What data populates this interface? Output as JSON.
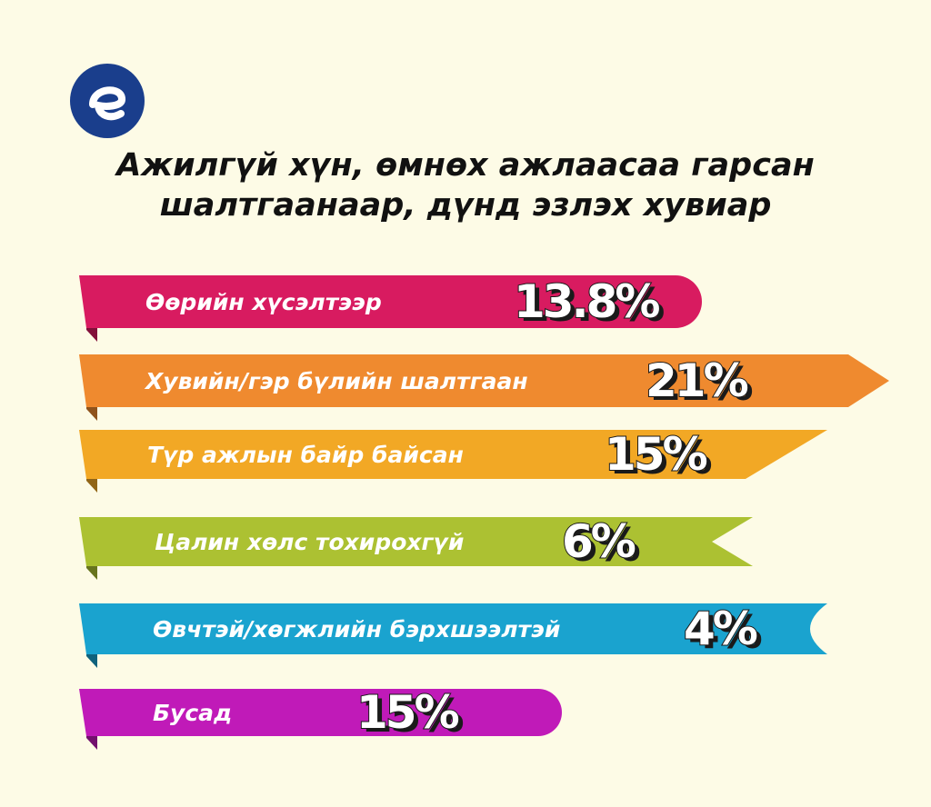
{
  "title_line1": "Ажилгүй хүн, өмнөх ажлаасаа гарсан",
  "title_line2": "шалтгаанаар, дүнд эзлэх хувиар",
  "logo_icon": "e-letter-logo-icon",
  "colors": {
    "background": "#fdfbe6",
    "logo": "#1a3e8c"
  },
  "chart_data": {
    "type": "bar",
    "categories": [
      "Өөрийн хүсэлтээр",
      "Хувийн/гэр бүлийн шалтгаан",
      "Түр ажлын байр байсан",
      "Цалин хөлс тохирохгүй",
      "Өвчтэй/хөгжлийн бэрхшээлтэй",
      "Бусад"
    ],
    "values": [
      13.8,
      21,
      15,
      6,
      4,
      15
    ],
    "value_labels": [
      "13.8%",
      "21%",
      "15%",
      "6%",
      "4%",
      "15%"
    ],
    "colors": [
      "#d81b60",
      "#ef8a2f",
      "#f2a825",
      "#acc132",
      "#1aa3cf",
      "#c01ab8"
    ],
    "ribbon_styles": [
      "rounded",
      "arrow",
      "slant",
      "notch",
      "concave",
      "rounded"
    ]
  }
}
